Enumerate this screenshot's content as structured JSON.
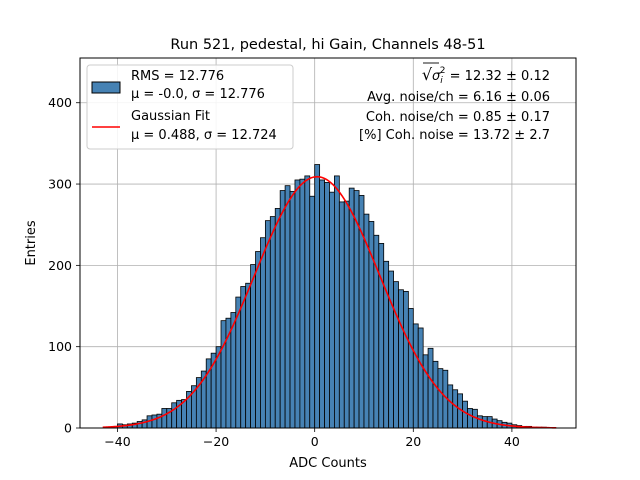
{
  "chart_data": {
    "type": "bar",
    "title": "Run 521, pedestal, hi Gain, Channels 48-51",
    "xlabel": "ADC Counts",
    "ylabel": "Entries",
    "xlim": [
      -47.6,
      53.0
    ],
    "ylim": [
      0,
      455
    ],
    "xticks": [
      -40,
      -20,
      0,
      20,
      40
    ],
    "yticks": [
      0,
      100,
      200,
      300,
      400
    ],
    "grid": true,
    "bin_edges": [
      -44,
      49
    ],
    "bin_width": 1,
    "bar_color": "#4682b4",
    "fit_color": "#ff0000",
    "histogram_counts": [
      0,
      0,
      1,
      2,
      5,
      4,
      5,
      6,
      8,
      10,
      15,
      16,
      17,
      24,
      24,
      31,
      34,
      35,
      45,
      52,
      62,
      70,
      85,
      92,
      100,
      132,
      135,
      142,
      161,
      174,
      178,
      201,
      217,
      234,
      255,
      260,
      270,
      292,
      298,
      291,
      305,
      306,
      310,
      285,
      324,
      305,
      302,
      290,
      310,
      278,
      279,
      295,
      292,
      286,
      263,
      254,
      237,
      227,
      205,
      193,
      180,
      170,
      168,
      147,
      128,
      123,
      90,
      98,
      82,
      73,
      71,
      53,
      47,
      42,
      33,
      24,
      23,
      15,
      14,
      14,
      11,
      9,
      7,
      6,
      4,
      3,
      2,
      2,
      1,
      1,
      1,
      0,
      0
    ],
    "fit_curve": {
      "mu": 0.488,
      "sigma": 12.724,
      "peak": 309,
      "x_range": [
        -43,
        49
      ]
    },
    "legend": {
      "placement": "upper left",
      "entries": [
        {
          "line1": "RMS = 12.776",
          "line2": "μ = -0.0, σ = 12.776",
          "kind": "patch"
        },
        {
          "line1": "Gaussian Fit",
          "line2": "μ = 0.488, σ = 12.724",
          "kind": "line"
        }
      ]
    },
    "annotations": [
      {
        "pre": "√",
        "sym": "σ",
        "sub": "i",
        "sup": "2",
        "post": " = 12.32 ± 0.12"
      },
      {
        "text": "Avg. noise/ch = 6.16 ± 0.06"
      },
      {
        "text": "Coh. noise/ch = 0.85 ± 0.17"
      },
      {
        "text": "[%] Coh. noise = 13.72 ± 2.7"
      }
    ]
  }
}
